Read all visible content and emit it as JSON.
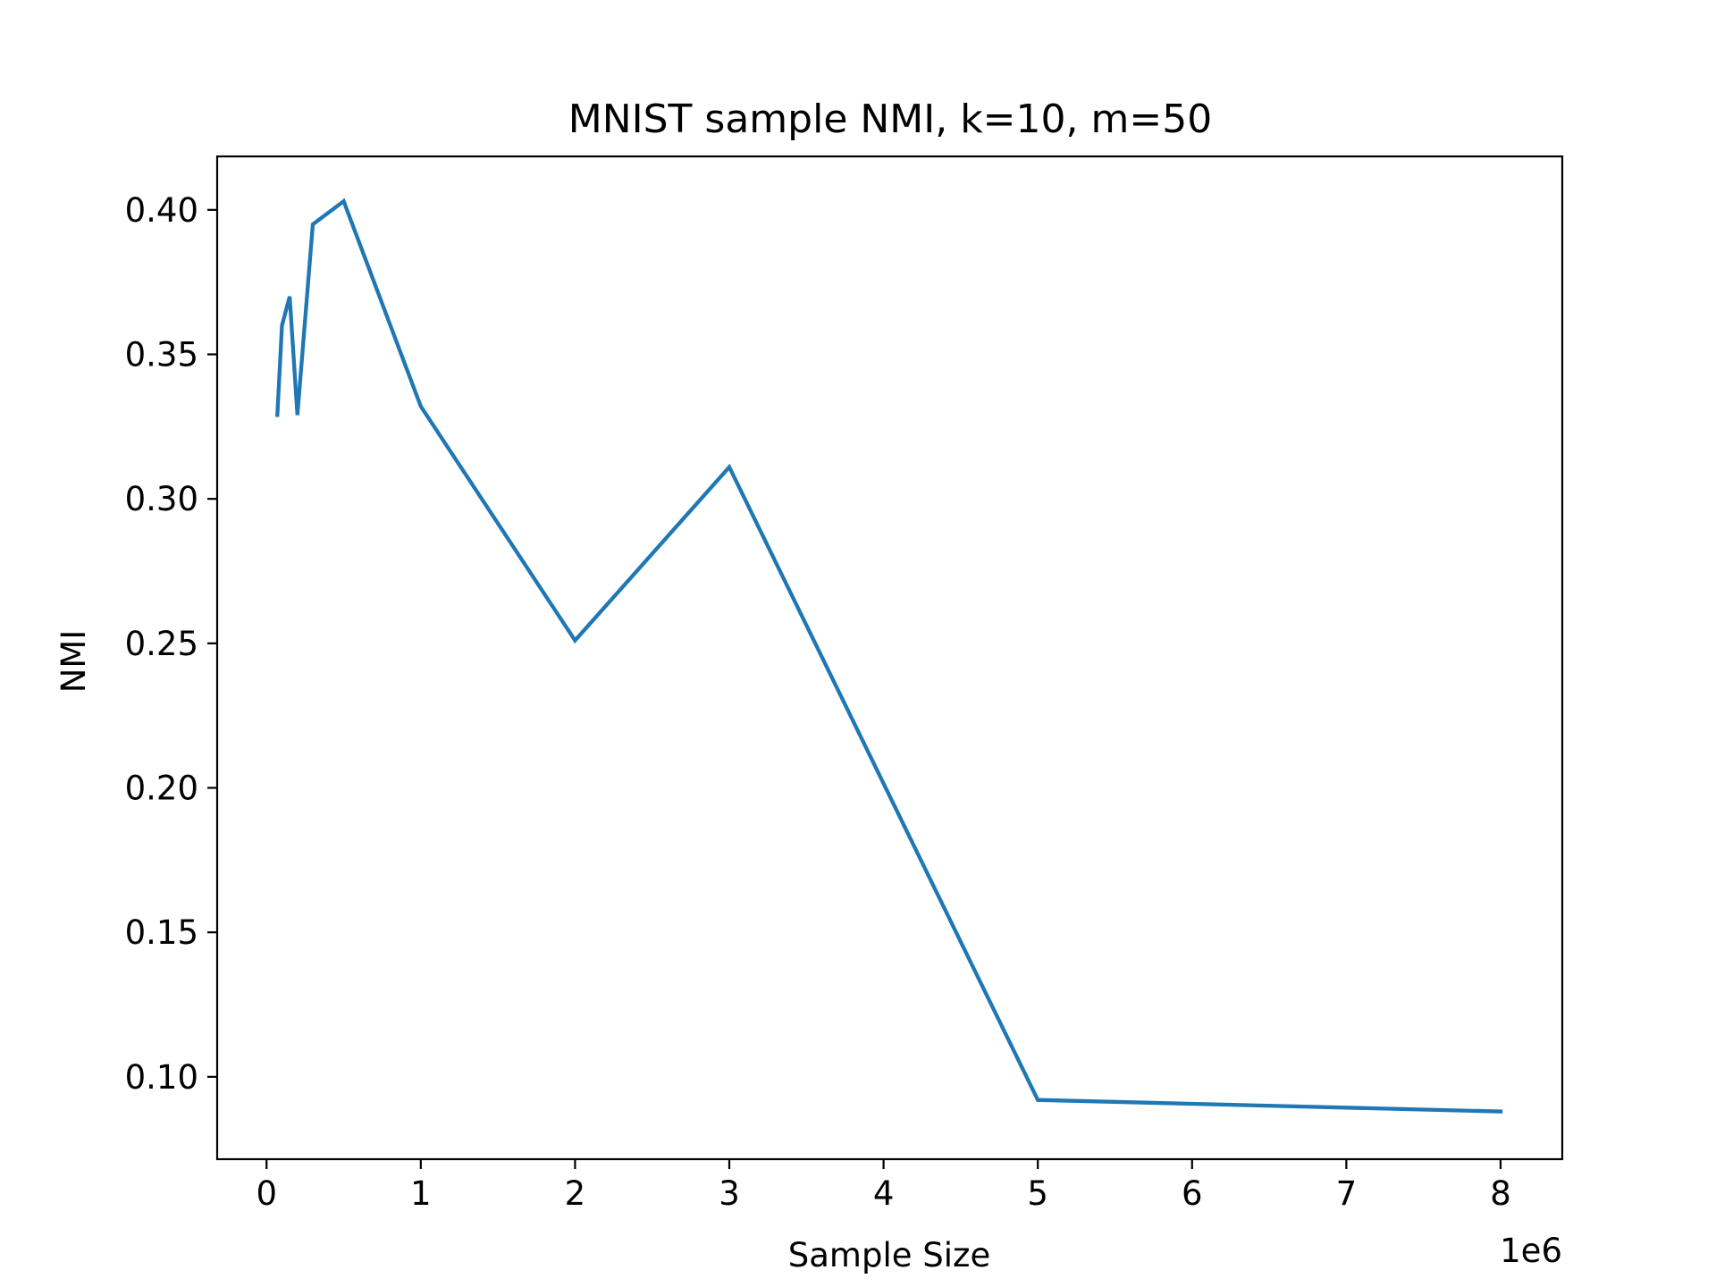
{
  "chart_data": {
    "type": "line",
    "title": "MNIST sample NMI, k=10, m=50",
    "xlabel": "Sample Size",
    "ylabel": "NMI",
    "x_offset_label": "1e6",
    "xlim": [
      -0.32,
      8.4
    ],
    "ylim": [
      0.0715,
      0.4185
    ],
    "xticks": [
      0,
      1,
      2,
      3,
      4,
      5,
      6,
      7,
      8
    ],
    "xtick_labels": [
      "0",
      "1",
      "2",
      "3",
      "4",
      "5",
      "6",
      "7",
      "8"
    ],
    "yticks": [
      0.1,
      0.15,
      0.2,
      0.25,
      0.3,
      0.35,
      0.4
    ],
    "ytick_labels": [
      "0.10",
      "0.15",
      "0.20",
      "0.25",
      "0.30",
      "0.35",
      "0.40"
    ],
    "grid": false,
    "series": [
      {
        "color": "#1f77b4",
        "x": [
          0.07,
          0.1,
          0.15,
          0.2,
          0.3,
          0.5,
          1,
          2,
          3,
          5,
          8
        ],
        "y": [
          0.329,
          0.36,
          0.37,
          0.329,
          0.395,
          0.403,
          0.332,
          0.251,
          0.311,
          0.092,
          0.088
        ]
      }
    ]
  }
}
